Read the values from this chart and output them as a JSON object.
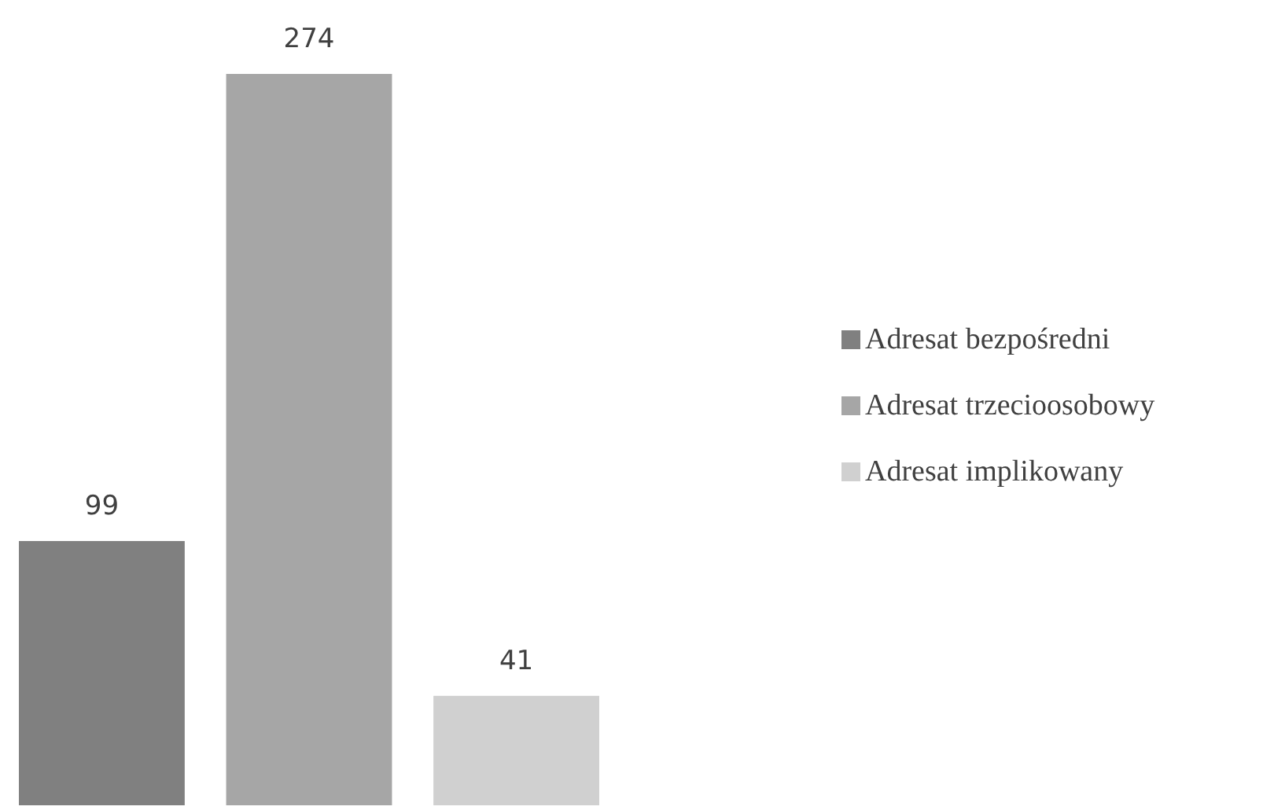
{
  "chart_data": {
    "type": "bar",
    "categories": [
      null
    ],
    "series": [
      {
        "name": "Adresat bezpośredni",
        "color": "#808080",
        "values": [
          99
        ]
      },
      {
        "name": "Adresat trzecioosobowy",
        "color": "#a6a6a6",
        "values": [
          274
        ]
      },
      {
        "name": "Adresat implikowany",
        "color": "#d0d0d0",
        "values": [
          41
        ]
      }
    ],
    "data_labels": true,
    "legend": "right"
  }
}
